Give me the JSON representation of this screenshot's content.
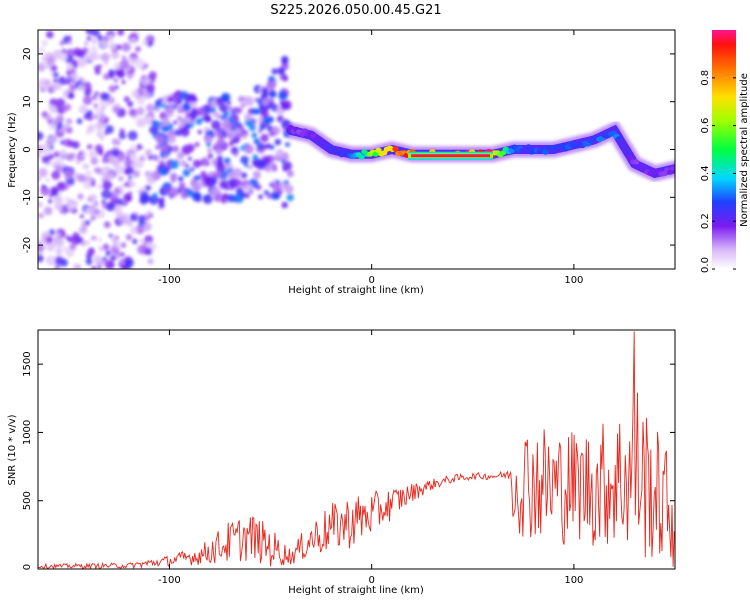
{
  "chart_data": [
    {
      "type": "heatmap",
      "title": "S225.2026.050.00.45.G21",
      "xlabel": "Height of straight line (km)",
      "ylabel": "Frequency (Hz)",
      "xlim": [
        -165,
        150
      ],
      "ylim": [
        -25,
        25
      ],
      "x_ticks": [
        -100,
        0,
        100
      ],
      "x_tick_labels": [
        "-100",
        "0",
        "100"
      ],
      "y_ticks": [
        -20,
        -10,
        0,
        10,
        20
      ],
      "y_tick_labels": [
        "-20",
        "-10",
        "0",
        "10",
        "20"
      ],
      "colorbar": {
        "label": "Normalized spectral amplitude",
        "range": [
          0,
          1
        ],
        "ticks": [
          0.0,
          0.2,
          0.4,
          0.6,
          0.8
        ],
        "tick_labels": [
          "0.0",
          "0.2",
          "0.4",
          "0.6",
          "0.8"
        ]
      },
      "ridge": {
        "x": [
          -40,
          -30,
          -20,
          -10,
          0,
          10,
          20,
          40,
          60,
          70,
          80,
          90,
          100,
          110,
          120,
          130,
          140,
          150
        ],
        "freq": [
          4,
          3,
          0,
          -1,
          -1,
          0,
          -1,
          -1,
          -1,
          0,
          0,
          0,
          1,
          2,
          4,
          -3,
          -5,
          -4
        ],
        "amplitude": [
          0.2,
          0.2,
          0.25,
          0.3,
          0.6,
          0.85,
          0.98,
          0.98,
          0.95,
          0.3,
          0.3,
          0.3,
          0.3,
          0.3,
          0.35,
          0.2,
          0.2,
          0.2
        ]
      }
    },
    {
      "type": "line",
      "title": "",
      "xlabel": "Height of straight line (km)",
      "ylabel": "SNR (10 * v/v)",
      "xlim": [
        -165,
        150
      ],
      "ylim": [
        0,
        1750
      ],
      "x_ticks": [
        -100,
        0,
        100
      ],
      "x_tick_labels": [
        "-100",
        "0",
        "100"
      ],
      "y_ticks": [
        0,
        500,
        1000,
        1500
      ],
      "y_tick_labels": [
        "0",
        "500",
        "1000",
        "1500"
      ],
      "series": [
        {
          "name": "SNR",
          "color": "#e8261c",
          "envelope_x": [
            -165,
            -120,
            -100,
            -85,
            -70,
            -60,
            -50,
            -40,
            -30,
            -20,
            -10,
            0,
            10,
            20,
            30,
            40,
            50,
            60,
            68,
            70,
            80,
            90,
            100,
            110,
            120,
            128,
            130,
            140,
            150
          ],
          "envelope_mean": [
            20,
            25,
            60,
            100,
            200,
            240,
            160,
            90,
            220,
            300,
            350,
            400,
            480,
            560,
            620,
            660,
            680,
            680,
            690,
            650,
            650,
            600,
            620,
            600,
            650,
            700,
            750,
            550,
            400
          ],
          "envelope_amp": [
            15,
            20,
            40,
            70,
            160,
            180,
            150,
            60,
            140,
            180,
            200,
            160,
            120,
            70,
            40,
            30,
            25,
            25,
            30,
            380,
            450,
            450,
            420,
            450,
            500,
            600,
            700,
            500,
            420
          ],
          "peak_x": 129.7,
          "peak_y": 1740
        }
      ]
    }
  ]
}
